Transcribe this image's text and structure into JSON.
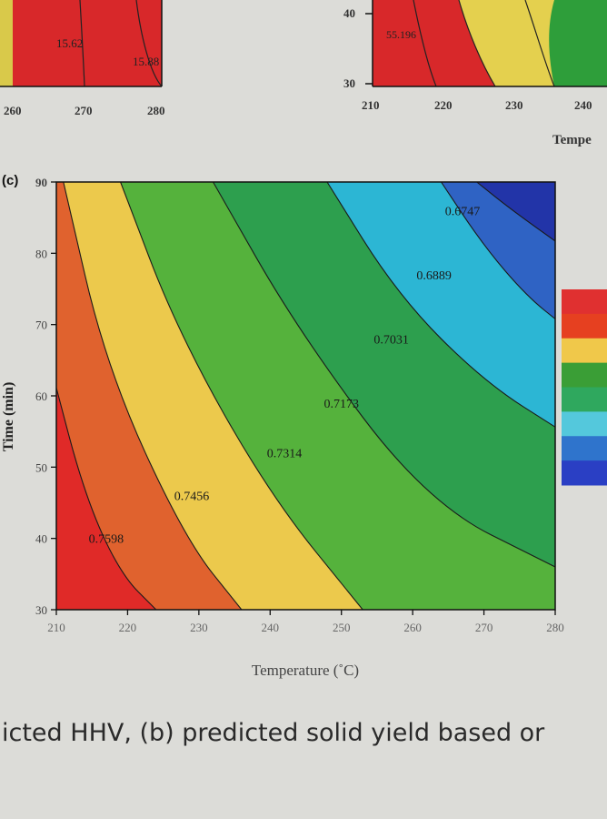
{
  "caption": "icted HHV, (b) predicted solid yield based or",
  "panel_label": "(c)",
  "legend_colors": [
    "#e03030",
    "#e64020",
    "#f0c84a",
    "#3a9e36",
    "#2fa85e",
    "#54c8dc",
    "#2f74cc",
    "#2a3fc4"
  ],
  "top_left_partial": {
    "x_ticks": [
      "260",
      "270",
      "280"
    ],
    "labels": [
      "15.62",
      "15.88"
    ]
  },
  "top_right_partial": {
    "x_ticks": [
      "210",
      "220",
      "230",
      "240"
    ],
    "y_ticks": [
      "40",
      "30"
    ],
    "labels": [
      "55.196"
    ],
    "xlabel": "Tempe"
  },
  "chart_data": {
    "type": "contour",
    "panel": "(c)",
    "xlabel": "Temperature (˚C)",
    "ylabel": "Time (min)",
    "xlim": [
      210,
      280
    ],
    "ylim": [
      30,
      90
    ],
    "x_ticks": [
      210,
      220,
      230,
      240,
      250,
      260,
      270,
      280
    ],
    "y_ticks": [
      30,
      40,
      50,
      60,
      70,
      80,
      90
    ],
    "levels": [
      0.7598,
      0.7456,
      0.7314,
      0.7173,
      0.7031,
      0.6889,
      0.6747
    ],
    "contour_labels": [
      {
        "text": "0.7598",
        "x": 217,
        "y": 40
      },
      {
        "text": "0.7456",
        "x": 229,
        "y": 46
      },
      {
        "text": "0.7314",
        "x": 242,
        "y": 52
      },
      {
        "text": "0.7173",
        "x": 250,
        "y": 59
      },
      {
        "text": "0.7031",
        "x": 257,
        "y": 68
      },
      {
        "text": "0.6889",
        "x": 263,
        "y": 77
      },
      {
        "text": "0.6747",
        "x": 267,
        "y": 86
      }
    ],
    "band_colors": [
      "#e02a28",
      "#e0622e",
      "#ecc94c",
      "#55b23c",
      "#2d9f4e",
      "#2cb6d4",
      "#2f63c4",
      "#2234a8"
    ],
    "grid": false,
    "legend": "right"
  }
}
